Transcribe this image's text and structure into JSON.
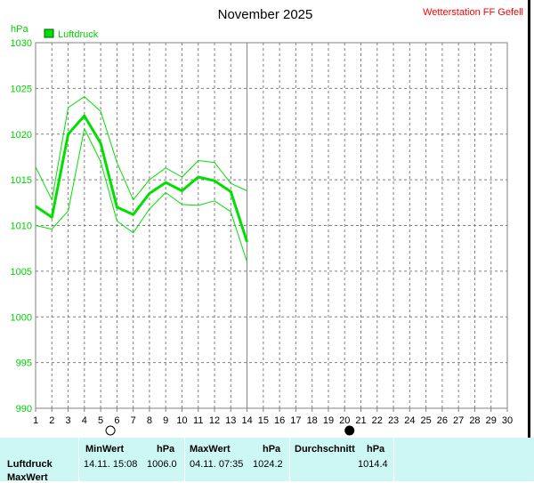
{
  "header": {
    "title": "November 2025",
    "station": "Wetterstation FF Gefell"
  },
  "chart_data": {
    "type": "line",
    "title": "November 2025",
    "ylabel": "hPa",
    "xlabel": "",
    "xlim": [
      1,
      30
    ],
    "ylim": [
      990,
      1030
    ],
    "y_ticks": [
      990,
      995,
      1000,
      1005,
      1010,
      1015,
      1020,
      1025,
      1030
    ],
    "x_ticks": [
      1,
      2,
      3,
      4,
      5,
      6,
      7,
      8,
      9,
      10,
      11,
      12,
      13,
      14,
      15,
      16,
      17,
      18,
      19,
      20,
      21,
      22,
      23,
      24,
      25,
      26,
      27,
      28,
      29,
      30
    ],
    "grid": true,
    "legend": "top-left",
    "today_marker_x": 14,
    "moon_phases": [
      {
        "type": "full",
        "x": 5.6
      },
      {
        "type": "new",
        "x": 20.3
      }
    ],
    "series": [
      {
        "name": "Luftdruck",
        "role": "mean",
        "color": "#00e000",
        "x": [
          1,
          2,
          3,
          4,
          5,
          6,
          7,
          8,
          9,
          10,
          11,
          12,
          13,
          14
        ],
        "values": [
          1012.1,
          1010.9,
          1020.0,
          1022.0,
          1019.0,
          1012.0,
          1011.2,
          1013.5,
          1014.7,
          1013.8,
          1015.3,
          1014.9,
          1013.7,
          1008.2
        ]
      },
      {
        "role": "max",
        "color": "#00e000",
        "x": [
          1,
          2,
          3,
          4,
          5,
          6,
          7,
          8,
          9,
          10,
          11,
          12,
          13,
          14
        ],
        "values": [
          1016.4,
          1012.8,
          1022.9,
          1024.1,
          1022.5,
          1016.9,
          1012.8,
          1015.0,
          1016.3,
          1015.3,
          1017.1,
          1016.9,
          1014.6,
          1013.8
        ]
      },
      {
        "role": "min",
        "color": "#00e000",
        "x": [
          1,
          2,
          3,
          4,
          5,
          6,
          7,
          8,
          9,
          10,
          11,
          12,
          13,
          14
        ],
        "values": [
          1010.0,
          1009.6,
          1011.6,
          1020.6,
          1017.0,
          1010.5,
          1009.2,
          1011.8,
          1013.6,
          1012.3,
          1012.2,
          1012.7,
          1011.5,
          1006.0
        ]
      }
    ]
  },
  "stats": {
    "headers": {
      "min": "MinWert",
      "max": "MaxWert",
      "avg": "Durchschnitt",
      "unit": "hPa"
    },
    "row1": {
      "label": "Luftdruck",
      "min_time": "14.11.  15:08",
      "min_value": "1006.0",
      "max_time": "04.11.  07:35",
      "max_value": "1024.2",
      "avg_value": "1014.4"
    },
    "row2": {
      "label": "MaxWert"
    }
  },
  "colors": {
    "plot_background": "#ffffff",
    "grid": "#808080",
    "frame": "#808080",
    "series": "#00e000",
    "station": "#ff0000",
    "scrollbar": "#000000",
    "stats_background": "#ccf7f5"
  }
}
